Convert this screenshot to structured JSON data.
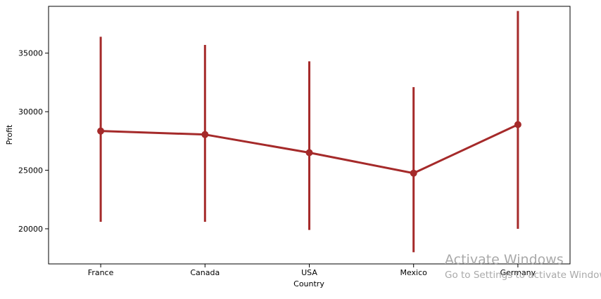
{
  "chart_data": {
    "type": "line",
    "title": "",
    "xlabel": "Country",
    "ylabel": "Profit",
    "categories": [
      "France",
      "Canada",
      "USA",
      "Mexico",
      "Germany"
    ],
    "series": [
      {
        "values": [
          28350,
          28050,
          26500,
          24750,
          28900
        ],
        "ci_low": [
          20600,
          20600,
          19900,
          18000,
          20000
        ],
        "ci_high": [
          36400,
          35700,
          34300,
          32100,
          38600
        ],
        "color": "#a52a2a"
      }
    ],
    "ylim": [
      17000,
      39000
    ],
    "yticks": [
      20000,
      25000,
      30000,
      35000
    ],
    "grid": false
  },
  "watermark": {
    "title": "Activate Windows",
    "subtitle": "Go to Settings to activate Windows."
  }
}
